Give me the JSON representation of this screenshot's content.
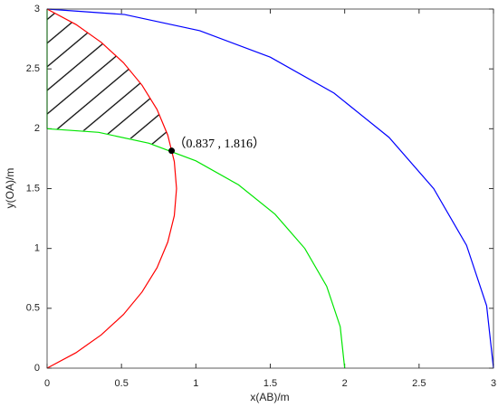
{
  "chart_data": {
    "type": "line",
    "xlabel": "x(AB)/m",
    "ylabel": "y(OA)/m",
    "xlim": [
      0,
      3
    ],
    "ylim": [
      0,
      3
    ],
    "xticks": [
      0,
      0.5,
      1,
      1.5,
      2,
      2.5,
      3
    ],
    "yticks": [
      0,
      0.5,
      1,
      1.5,
      2,
      2.5,
      3
    ],
    "series": [
      {
        "color": "#0000ff",
        "x": [
          0,
          0.521,
          1.026,
          1.5,
          1.928,
          2.298,
          2.598,
          2.819,
          2.954,
          3
        ],
        "values": [
          3,
          2.954,
          2.819,
          2.598,
          2.298,
          1.928,
          1.5,
          1.026,
          0.521,
          0
        ]
      },
      {
        "color": "#00e600",
        "x": [
          0,
          0.347,
          0.684,
          1,
          1.286,
          1.532,
          1.732,
          1.879,
          1.97,
          2
        ],
        "values": [
          2,
          1.97,
          1.879,
          1.732,
          1.532,
          1.286,
          1,
          0.684,
          0.347,
          0
        ]
      },
      {
        "color": "#00e600",
        "x": [
          0,
          0
        ],
        "values": [
          2,
          3
        ]
      },
      {
        "color": "#ff0000",
        "x": [
          0,
          0.194,
          0.364,
          0.513,
          0.638,
          0.739,
          0.811,
          0.855,
          0.87,
          0.855,
          0.811,
          0.739,
          0.638,
          0.513,
          0.364,
          0.194,
          0
        ],
        "values": [
          0,
          0.129,
          0.278,
          0.448,
          0.636,
          0.839,
          1.053,
          1.274,
          1.5,
          1.726,
          1.947,
          2.161,
          2.364,
          2.552,
          2.722,
          2.871,
          3
        ]
      }
    ],
    "annotation": {
      "text": "（0.837 , 1.816）",
      "x": 0.837,
      "y": 1.816
    }
  }
}
